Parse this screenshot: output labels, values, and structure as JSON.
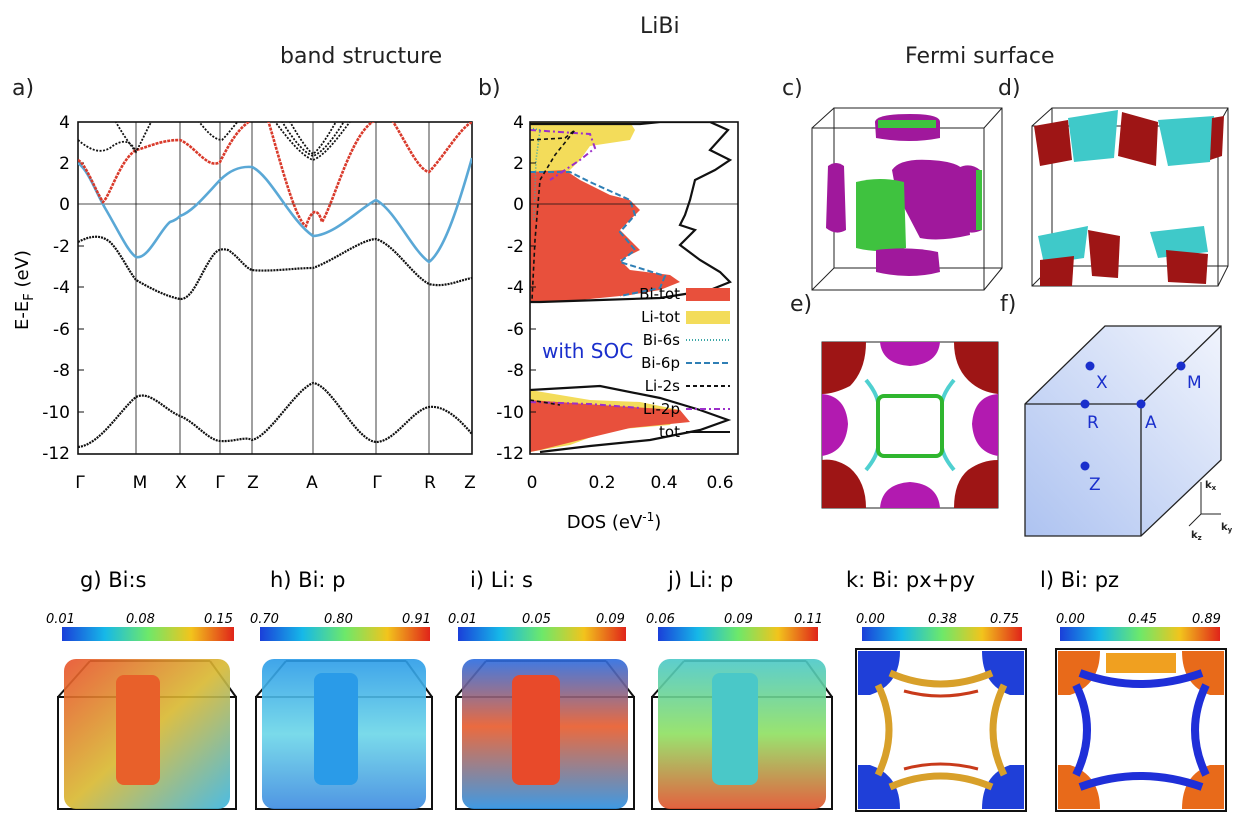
{
  "figure": {
    "main_title": "LiBi",
    "band_title": "band structure",
    "fermi_title": "Fermi surface",
    "panel_a": "a)",
    "panel_b": "b)",
    "panel_c": "c)",
    "panel_d": "d)",
    "panel_e": "e)",
    "panel_f": "f)"
  },
  "band_plot": {
    "ylabel_main": "E-E",
    "ylabel_sub": "F",
    "ylabel_unit": " (eV)",
    "yticks": [
      "4",
      "2",
      "0",
      "-2",
      "-4",
      "-6",
      "-8",
      "-10",
      "-12"
    ],
    "kpoints": [
      "Γ",
      "M",
      "X",
      "Γ",
      "Z",
      "A",
      "Γ",
      "R",
      "Z"
    ],
    "colors": {
      "red": "#d93a2b",
      "blue": "#5aa8d6",
      "black": "#111111"
    }
  },
  "dos_plot": {
    "xlabel": "DOS (eV",
    "xlabel_sup": "-1",
    "xlabel_end": ")",
    "xticks": [
      "0",
      "0.2",
      "0.4",
      "0.6"
    ],
    "yticks": [
      "4",
      "2",
      "0",
      "-2",
      "-4",
      "-6",
      "-8",
      "-10",
      "-12"
    ],
    "annotation": "with SOC",
    "legend": [
      {
        "label": "Bi-tot",
        "color": "#e8503c"
      },
      {
        "label": "Li-tot",
        "color": "#f3dc5a"
      },
      {
        "label": "Bi-6s",
        "color": "#3aa6a6"
      },
      {
        "label": "Bi-6p",
        "color": "#2f7fb5"
      },
      {
        "label": "Li-2s",
        "color": "#111111"
      },
      {
        "label": "Li-2p",
        "color": "#9b2fc9"
      },
      {
        "label": "tot",
        "color": "#111111"
      }
    ]
  },
  "bz": {
    "points": [
      "X",
      "M",
      "R",
      "A",
      "Z"
    ],
    "axes": [
      "k",
      "x",
      "k",
      "z",
      "k",
      "y"
    ]
  },
  "projections": [
    {
      "id": "g",
      "title": "g) Bi:s",
      "min": "0.01",
      "mid": "0.08",
      "max": "0.15"
    },
    {
      "id": "h",
      "title": "h) Bi: p",
      "min": "0.70",
      "mid": "0.80",
      "max": "0.91"
    },
    {
      "id": "i",
      "title": "i) Li: s",
      "min": "0.01",
      "mid": "0.05",
      "max": "0.09"
    },
    {
      "id": "j",
      "title": "j) Li: p",
      "min": "0.06",
      "mid": "0.09",
      "max": "0.11"
    },
    {
      "id": "k",
      "title": "k: Bi: px+py",
      "min": "0.00",
      "mid": "0.38",
      "max": "0.75"
    },
    {
      "id": "l",
      "title": "l) Bi: pz",
      "min": "0.00",
      "mid": "0.45",
      "max": "0.89"
    }
  ]
}
